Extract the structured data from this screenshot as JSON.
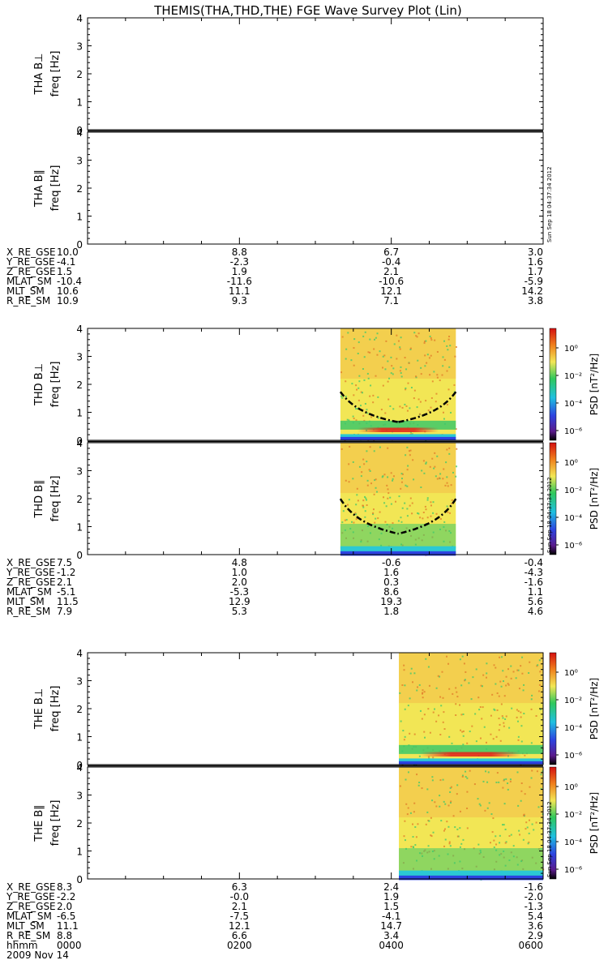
{
  "title": "THEMIS(THA,THD,THE) FGE Wave Survey Plot (Lin)",
  "timestamp": "Sun Sep 18 04:37:34 2012",
  "colorbar": {
    "label": "PSD [nT²/Hz]",
    "ticks": [
      "10⁰",
      "10⁻²",
      "10⁻⁴",
      "10⁻⁶"
    ]
  },
  "colors": {
    "spectrogram_bg": "#f2e655",
    "band_green": "#3ec86a",
    "band_cyan": "#2bc9d3",
    "band_blue": "#2d43e0",
    "intense_red": "#e32a1b",
    "curve": "#000000"
  },
  "ephemeris_labels": [
    "X_RE_GSE",
    "Y_RE_GSE",
    "Z_RE_GSE",
    "MLAT_SM",
    "MLT_SM",
    "R_RE_SM"
  ],
  "time_axis": {
    "label": "hhmm",
    "ticks": [
      "0000",
      "0200",
      "0400",
      "0600"
    ],
    "date": "2009 Nov 14"
  },
  "chart_data": [
    {
      "probe": "THA",
      "type": "heatmap",
      "panels": [
        {
          "label_top": "THA B⊥",
          "ylabel": "freq [Hz]"
        },
        {
          "label_top": "THA B∥",
          "ylabel": "freq [Hz]"
        }
      ],
      "yticks": [
        "0",
        "1",
        "2",
        "3",
        "4"
      ],
      "ylim": [
        0,
        4
      ],
      "has_data": false,
      "ephemeris": [
        [
          "10.0",
          "8.8",
          "6.7",
          "3.0"
        ],
        [
          "-4.1",
          "-2.3",
          "-0.4",
          "1.6"
        ],
        [
          "1.5",
          "1.9",
          "2.1",
          "1.7"
        ],
        [
          "-10.4",
          "-11.6",
          "-10.6",
          "-5.9"
        ],
        [
          "10.6",
          "11.1",
          "12.1",
          "14.2"
        ],
        [
          "10.9",
          "9.3",
          "7.1",
          "3.8"
        ]
      ]
    },
    {
      "probe": "THD",
      "type": "heatmap",
      "panels": [
        {
          "label_top": "THD B⊥",
          "ylabel": "freq [Hz]"
        },
        {
          "label_top": "THD B∥",
          "ylabel": "freq [Hz]"
        }
      ],
      "yticks": [
        "0",
        "1",
        "2",
        "3",
        "4"
      ],
      "ylim": [
        0,
        4
      ],
      "has_data": true,
      "data_span_hours": [
        3.33,
        4.85
      ],
      "ephemeris": [
        [
          "7.5",
          "4.8",
          "-0.6",
          "-0.4"
        ],
        [
          "-1.2",
          "1.0",
          "1.6",
          "-4.3"
        ],
        [
          "2.1",
          "2.0",
          "0.3",
          "-1.6"
        ],
        [
          "-5.1",
          "-5.3",
          "8.6",
          "1.1"
        ],
        [
          "11.5",
          "12.9",
          "19.3",
          "5.6"
        ],
        [
          "7.9",
          "5.3",
          "1.8",
          "4.6"
        ]
      ]
    },
    {
      "probe": "THE",
      "type": "heatmap",
      "panels": [
        {
          "label_top": "THE B⊥",
          "ylabel": "freq [Hz]"
        },
        {
          "label_top": "THE B∥",
          "ylabel": "freq [Hz]"
        }
      ],
      "yticks": [
        "0",
        "1",
        "2",
        "3",
        "4"
      ],
      "ylim": [
        0,
        4
      ],
      "has_data": true,
      "data_span_hours": [
        4.1,
        6.0
      ],
      "ephemeris": [
        [
          "8.3",
          "6.3",
          "2.4",
          "-1.6"
        ],
        [
          "-2.2",
          "-0.0",
          "1.9",
          "-2.0"
        ],
        [
          "2.0",
          "2.1",
          "1.5",
          "-1.3"
        ],
        [
          "-6.5",
          "-7.5",
          "-4.1",
          "5.4"
        ],
        [
          "11.1",
          "12.1",
          "14.7",
          "3.6"
        ],
        [
          "8.8",
          "6.6",
          "3.4",
          "2.9"
        ]
      ]
    }
  ]
}
